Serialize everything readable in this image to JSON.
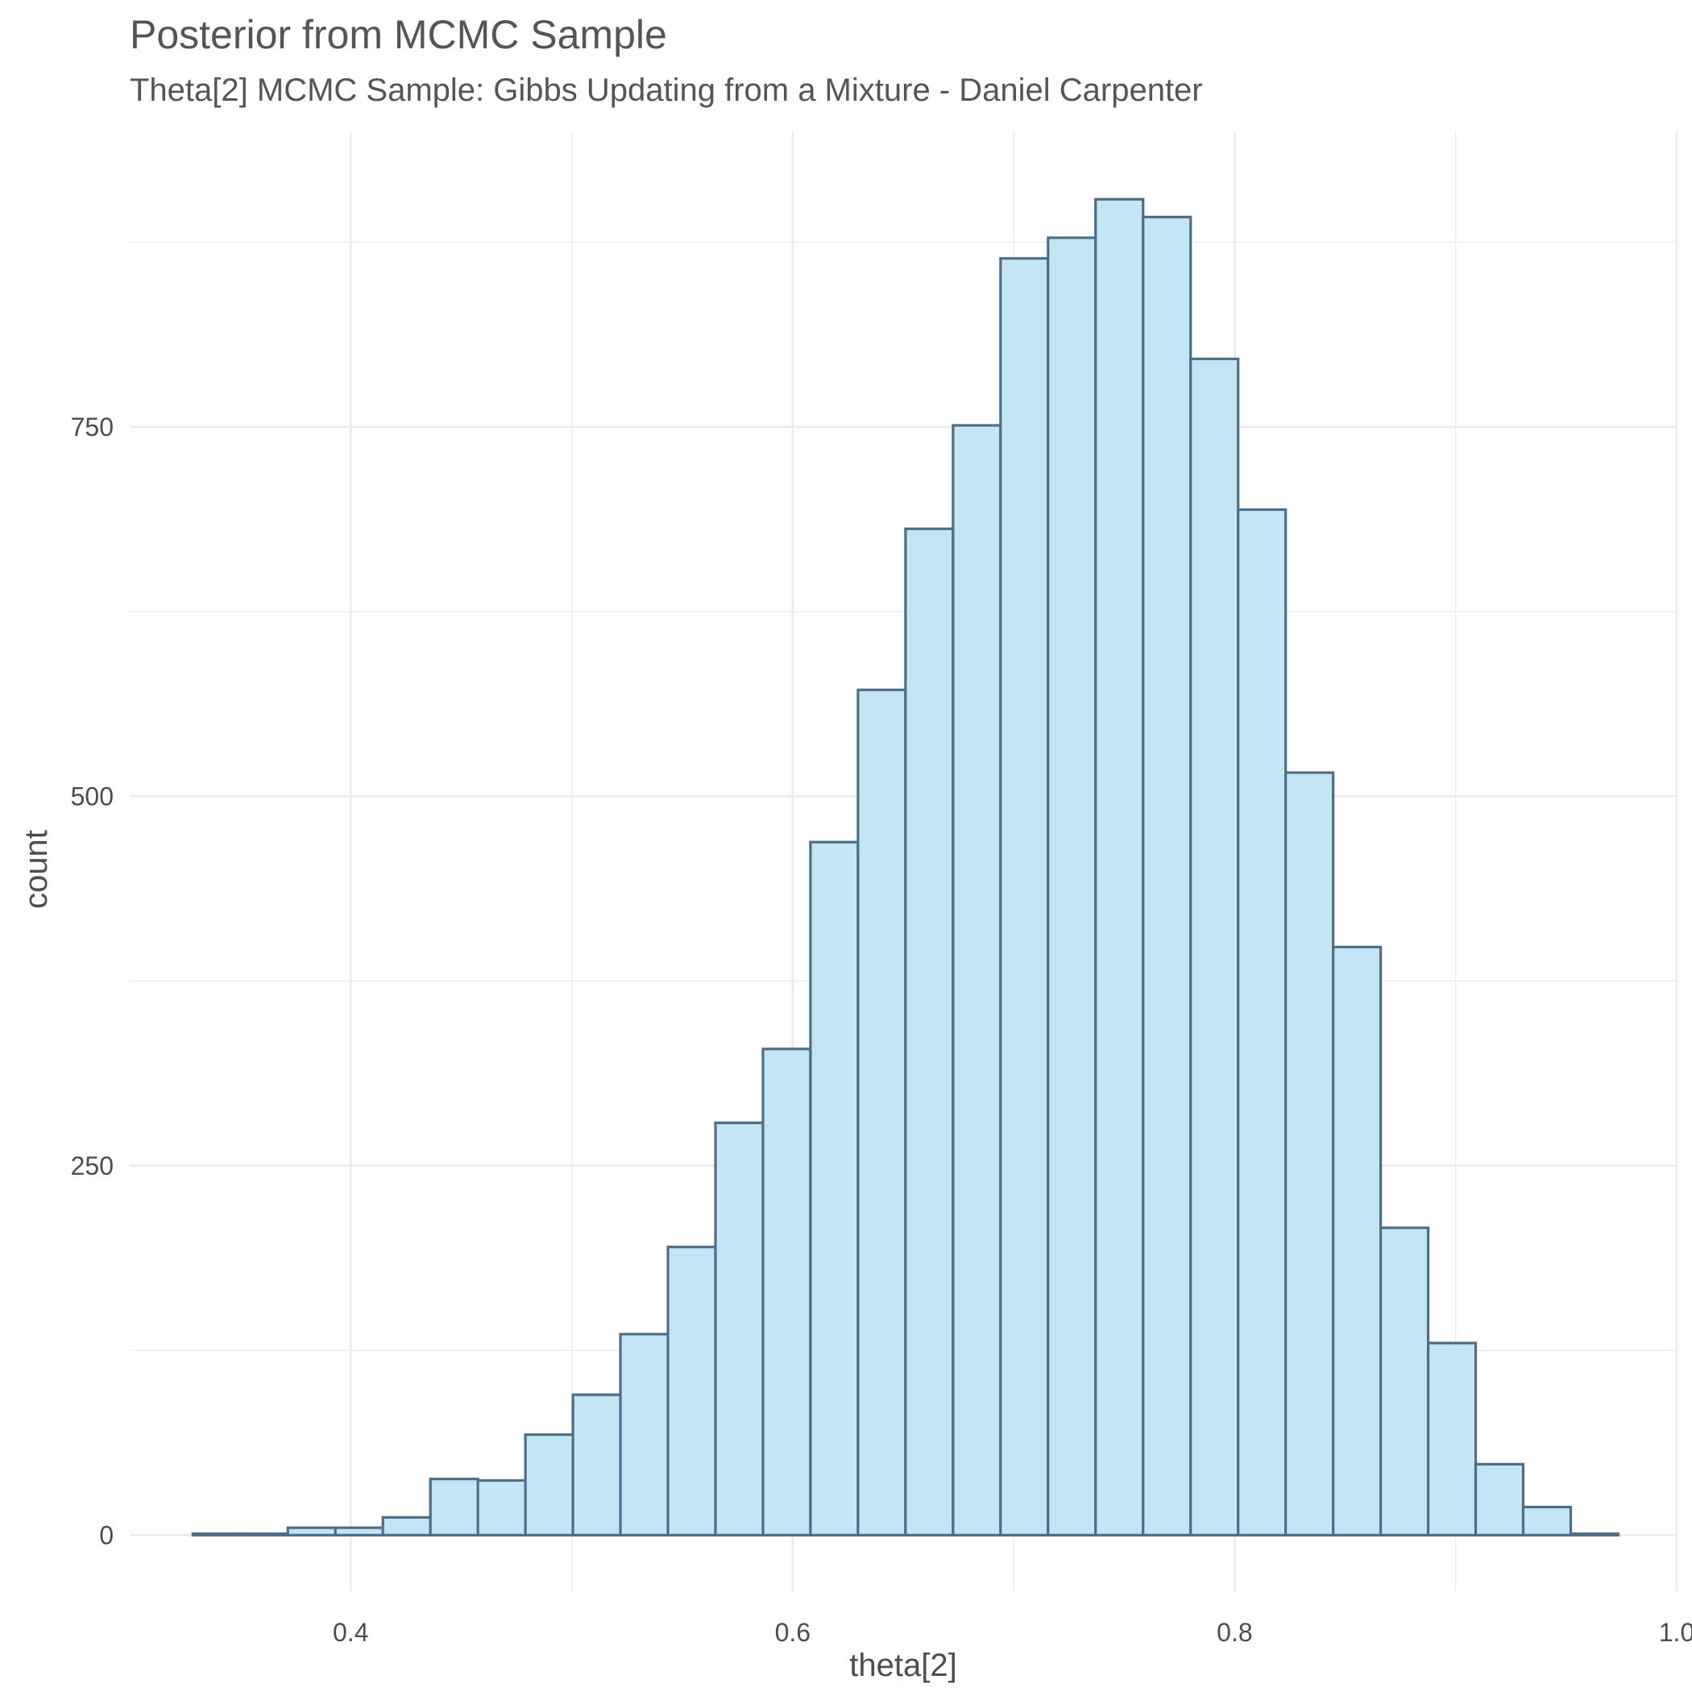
{
  "chart_data": {
    "type": "bar",
    "title": "Posterior from MCMC Sample",
    "subtitle": "Theta[2] MCMC Sample: Gibbs Updating from a Mixture - Daniel Carpenter",
    "xlabel": "theta[2]",
    "ylabel": "count",
    "xlim": [
      0.3,
      1.0
    ],
    "ylim": [
      -38,
      950
    ],
    "x_ticks": [
      0.4,
      0.6,
      0.8,
      1.0
    ],
    "x_tick_labels": [
      "0.4",
      "0.6",
      "0.8",
      "1.0"
    ],
    "y_ticks": [
      0,
      250,
      500,
      750
    ],
    "y_tick_labels": [
      "0",
      "250",
      "500",
      "750"
    ],
    "grid": true,
    "bin_width": 0.0215,
    "bins_x": [
      0.3393,
      0.3608,
      0.3823,
      0.4038,
      0.4253,
      0.4468,
      0.4683,
      0.4898,
      0.5113,
      0.5328,
      0.5543,
      0.5758,
      0.5973,
      0.6188,
      0.6403,
      0.6618,
      0.6833,
      0.7048,
      0.7263,
      0.7478,
      0.7693,
      0.7908,
      0.8123,
      0.8338,
      0.8553,
      0.8768,
      0.8983,
      0.9198,
      0.9413,
      0.9628
    ],
    "counts": [
      1,
      1,
      5,
      5,
      12,
      38,
      37,
      68,
      95,
      136,
      195,
      279,
      329,
      469,
      572,
      681,
      751,
      864,
      878,
      904,
      892,
      796,
      694,
      516,
      398,
      208,
      130,
      48,
      19,
      1
    ],
    "fill_color": "#c4e5f4",
    "outline_color": "#4d6e88",
    "background_color": "#ffffff",
    "grid_color": "#ebebeb"
  }
}
